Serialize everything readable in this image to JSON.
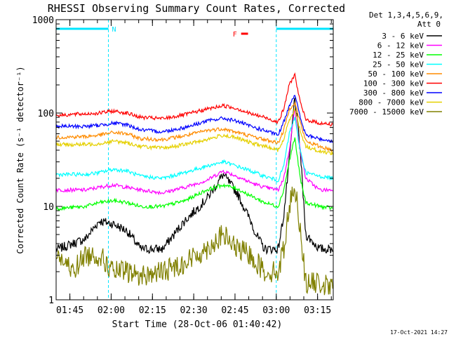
{
  "chart_data": {
    "type": "line",
    "title": "RHESSI Observing Summary Count Rates, Corrected",
    "xlabel": "Start Time (28-Oct-06 01:40:42)",
    "ylabel": "Corrected Count Rate (s⁻¹ detector⁻¹)",
    "yscale": "log",
    "ylim": [
      1,
      1000
    ],
    "xlim_minutes_after_start": [
      -0.7,
      100
    ],
    "x_ticks": [
      "01:45",
      "02:00",
      "02:15",
      "02:30",
      "02:45",
      "03:00",
      "03:15"
    ],
    "y_ticks": [
      "1",
      "10",
      "100",
      "1000"
    ],
    "legend_header": [
      "Det 1,3,4,5,6,9,",
      "Att 0"
    ],
    "legend_placement": "right-outside",
    "footer": "17-Oct-2021 14:27",
    "annotations": {
      "night_marker": "N",
      "flare_marker": "F",
      "night_intervals_minutes": [
        [
          -0.7,
          18.3
        ],
        [
          79.3,
          100
        ]
      ],
      "flare_interval_minutes": [
        65,
        67.5
      ]
    },
    "series": [
      {
        "name": "3 - 6 keV",
        "color": "#000000",
        "x": [
          0,
          10,
          15,
          20,
          25,
          30,
          38,
          46,
          54,
          60,
          65,
          70,
          72,
          75,
          80,
          82,
          84,
          86,
          88,
          90,
          95,
          100
        ],
        "y": [
          3.5,
          4.5,
          7,
          6.5,
          5.5,
          3.5,
          3.5,
          7,
          12,
          22,
          14,
          7,
          5,
          3.5,
          3.5,
          8,
          30,
          150,
          40,
          5,
          3.5,
          3.5
        ]
      },
      {
        "name": "6 - 12 keV",
        "color": "#ff00ff",
        "x": [
          0,
          10,
          15,
          20,
          25,
          30,
          38,
          46,
          54,
          60,
          65,
          70,
          75,
          80,
          82,
          84,
          86,
          88,
          90,
          95,
          100
        ],
        "y": [
          15,
          15,
          16,
          17,
          16,
          15,
          14,
          16,
          19,
          24,
          21,
          18,
          16,
          15,
          20,
          40,
          110,
          40,
          20,
          15,
          15
        ]
      },
      {
        "name": "12 - 25 keV",
        "color": "#00ff00",
        "x": [
          0,
          10,
          15,
          20,
          25,
          30,
          38,
          46,
          54,
          60,
          65,
          70,
          75,
          80,
          82,
          84,
          86,
          88,
          90,
          95,
          100
        ],
        "y": [
          9.5,
          10,
          11,
          11.5,
          11,
          10,
          10,
          11.5,
          15,
          17,
          15.5,
          13,
          11,
          10,
          15,
          30,
          55,
          20,
          11,
          10,
          9.5
        ]
      },
      {
        "name": "25 - 50 keV",
        "color": "#00ffff",
        "x": [
          0,
          10,
          15,
          20,
          25,
          30,
          38,
          46,
          54,
          60,
          65,
          70,
          75,
          80,
          82,
          84,
          86,
          88,
          90,
          95,
          100
        ],
        "y": [
          22,
          22,
          23,
          25,
          24,
          21,
          20,
          23,
          27,
          30,
          27,
          24,
          21,
          19,
          27,
          60,
          90,
          40,
          23,
          21,
          20
        ]
      },
      {
        "name": "50 - 100 keV",
        "color": "#ff8c00",
        "x": [
          0,
          10,
          15,
          20,
          25,
          30,
          38,
          46,
          54,
          60,
          65,
          70,
          75,
          80,
          82,
          84,
          86,
          88,
          90,
          95,
          100
        ],
        "y": [
          55,
          56,
          58,
          62,
          60,
          53,
          52,
          57,
          65,
          68,
          62,
          57,
          52,
          48,
          65,
          110,
          130,
          80,
          50,
          44,
          40
        ]
      },
      {
        "name": "100 - 300 keV",
        "color": "#ff0000",
        "x": [
          0,
          10,
          15,
          20,
          25,
          30,
          38,
          46,
          54,
          60,
          65,
          70,
          75,
          80,
          82,
          84,
          86,
          88,
          90,
          95,
          100
        ],
        "y": [
          95,
          98,
          100,
          105,
          100,
          90,
          87,
          96,
          110,
          120,
          112,
          98,
          90,
          80,
          110,
          200,
          260,
          130,
          85,
          78,
          75
        ]
      },
      {
        "name": "300 - 800 keV",
        "color": "#0000ff",
        "x": [
          0,
          10,
          15,
          20,
          25,
          30,
          38,
          46,
          54,
          60,
          65,
          70,
          75,
          80,
          82,
          84,
          86,
          88,
          90,
          95,
          100
        ],
        "y": [
          72,
          72,
          74,
          78,
          75,
          66,
          63,
          70,
          82,
          88,
          82,
          72,
          65,
          58,
          80,
          120,
          160,
          90,
          58,
          53,
          50
        ]
      },
      {
        "name": "800 - 7000 keV",
        "color": "#e5d000",
        "x": [
          0,
          10,
          15,
          20,
          25,
          30,
          38,
          46,
          54,
          60,
          65,
          70,
          75,
          80,
          82,
          84,
          86,
          88,
          90,
          95,
          100
        ],
        "y": [
          46,
          46,
          47,
          50,
          48,
          44,
          42,
          46,
          52,
          58,
          54,
          48,
          44,
          40,
          52,
          85,
          110,
          65,
          44,
          39,
          37
        ]
      },
      {
        "name": "7000 - 15000 keV",
        "color": "#808000",
        "x": [
          0,
          5,
          10,
          15,
          20,
          25,
          30,
          38,
          46,
          54,
          60,
          65,
          70,
          75,
          80,
          82,
          84,
          86,
          88,
          90,
          95,
          100
        ],
        "y": [
          3,
          2,
          3,
          3,
          2,
          2,
          1.8,
          2,
          2.5,
          3.5,
          5,
          3.5,
          3,
          2,
          2,
          3.5,
          10,
          17,
          6,
          1.5,
          1.5,
          1.3
        ]
      }
    ]
  }
}
